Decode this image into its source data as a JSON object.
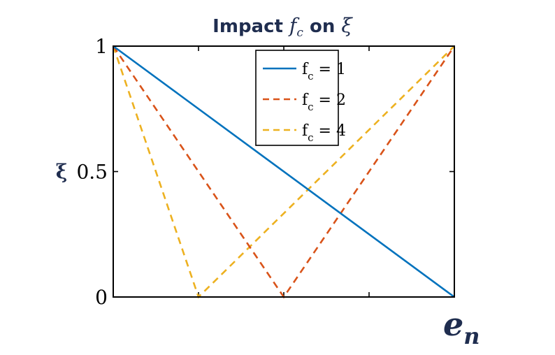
{
  "chart_data": {
    "type": "line",
    "title_prefix": "Impact ",
    "title_var_main": "f",
    "title_var_sub": "c",
    "title_mid": " on ",
    "title_symbol": "ξ",
    "ylabel": "ξ",
    "xlabel_main": "e",
    "xlabel_sub": "n",
    "xlim": [
      0,
      1
    ],
    "ylim": [
      0,
      1
    ],
    "yticks": [
      {
        "value": 0,
        "label": "0"
      },
      {
        "value": 0.5,
        "label": "0.5"
      },
      {
        "value": 1,
        "label": "1"
      }
    ],
    "xticks": [
      0.25,
      0.5,
      0.75
    ],
    "legend_position": "top-right",
    "series": [
      {
        "name_main": "f",
        "name_sub": "c",
        "name_value": " = 1",
        "color": "#0072BD",
        "dash": "solid",
        "x": [
          0,
          1
        ],
        "y": [
          1,
          0
        ]
      },
      {
        "name_main": "f",
        "name_sub": "c",
        "name_value": " = 2",
        "color": "#D95319",
        "dash": "dashed",
        "x": [
          0,
          0.5,
          1
        ],
        "y": [
          1,
          0,
          1
        ]
      },
      {
        "name_main": "f",
        "name_sub": "c",
        "name_value": " = 4",
        "color": "#EDB120",
        "dash": "dashed",
        "x": [
          0,
          0.25,
          1
        ],
        "y": [
          1,
          0,
          1
        ]
      }
    ]
  }
}
